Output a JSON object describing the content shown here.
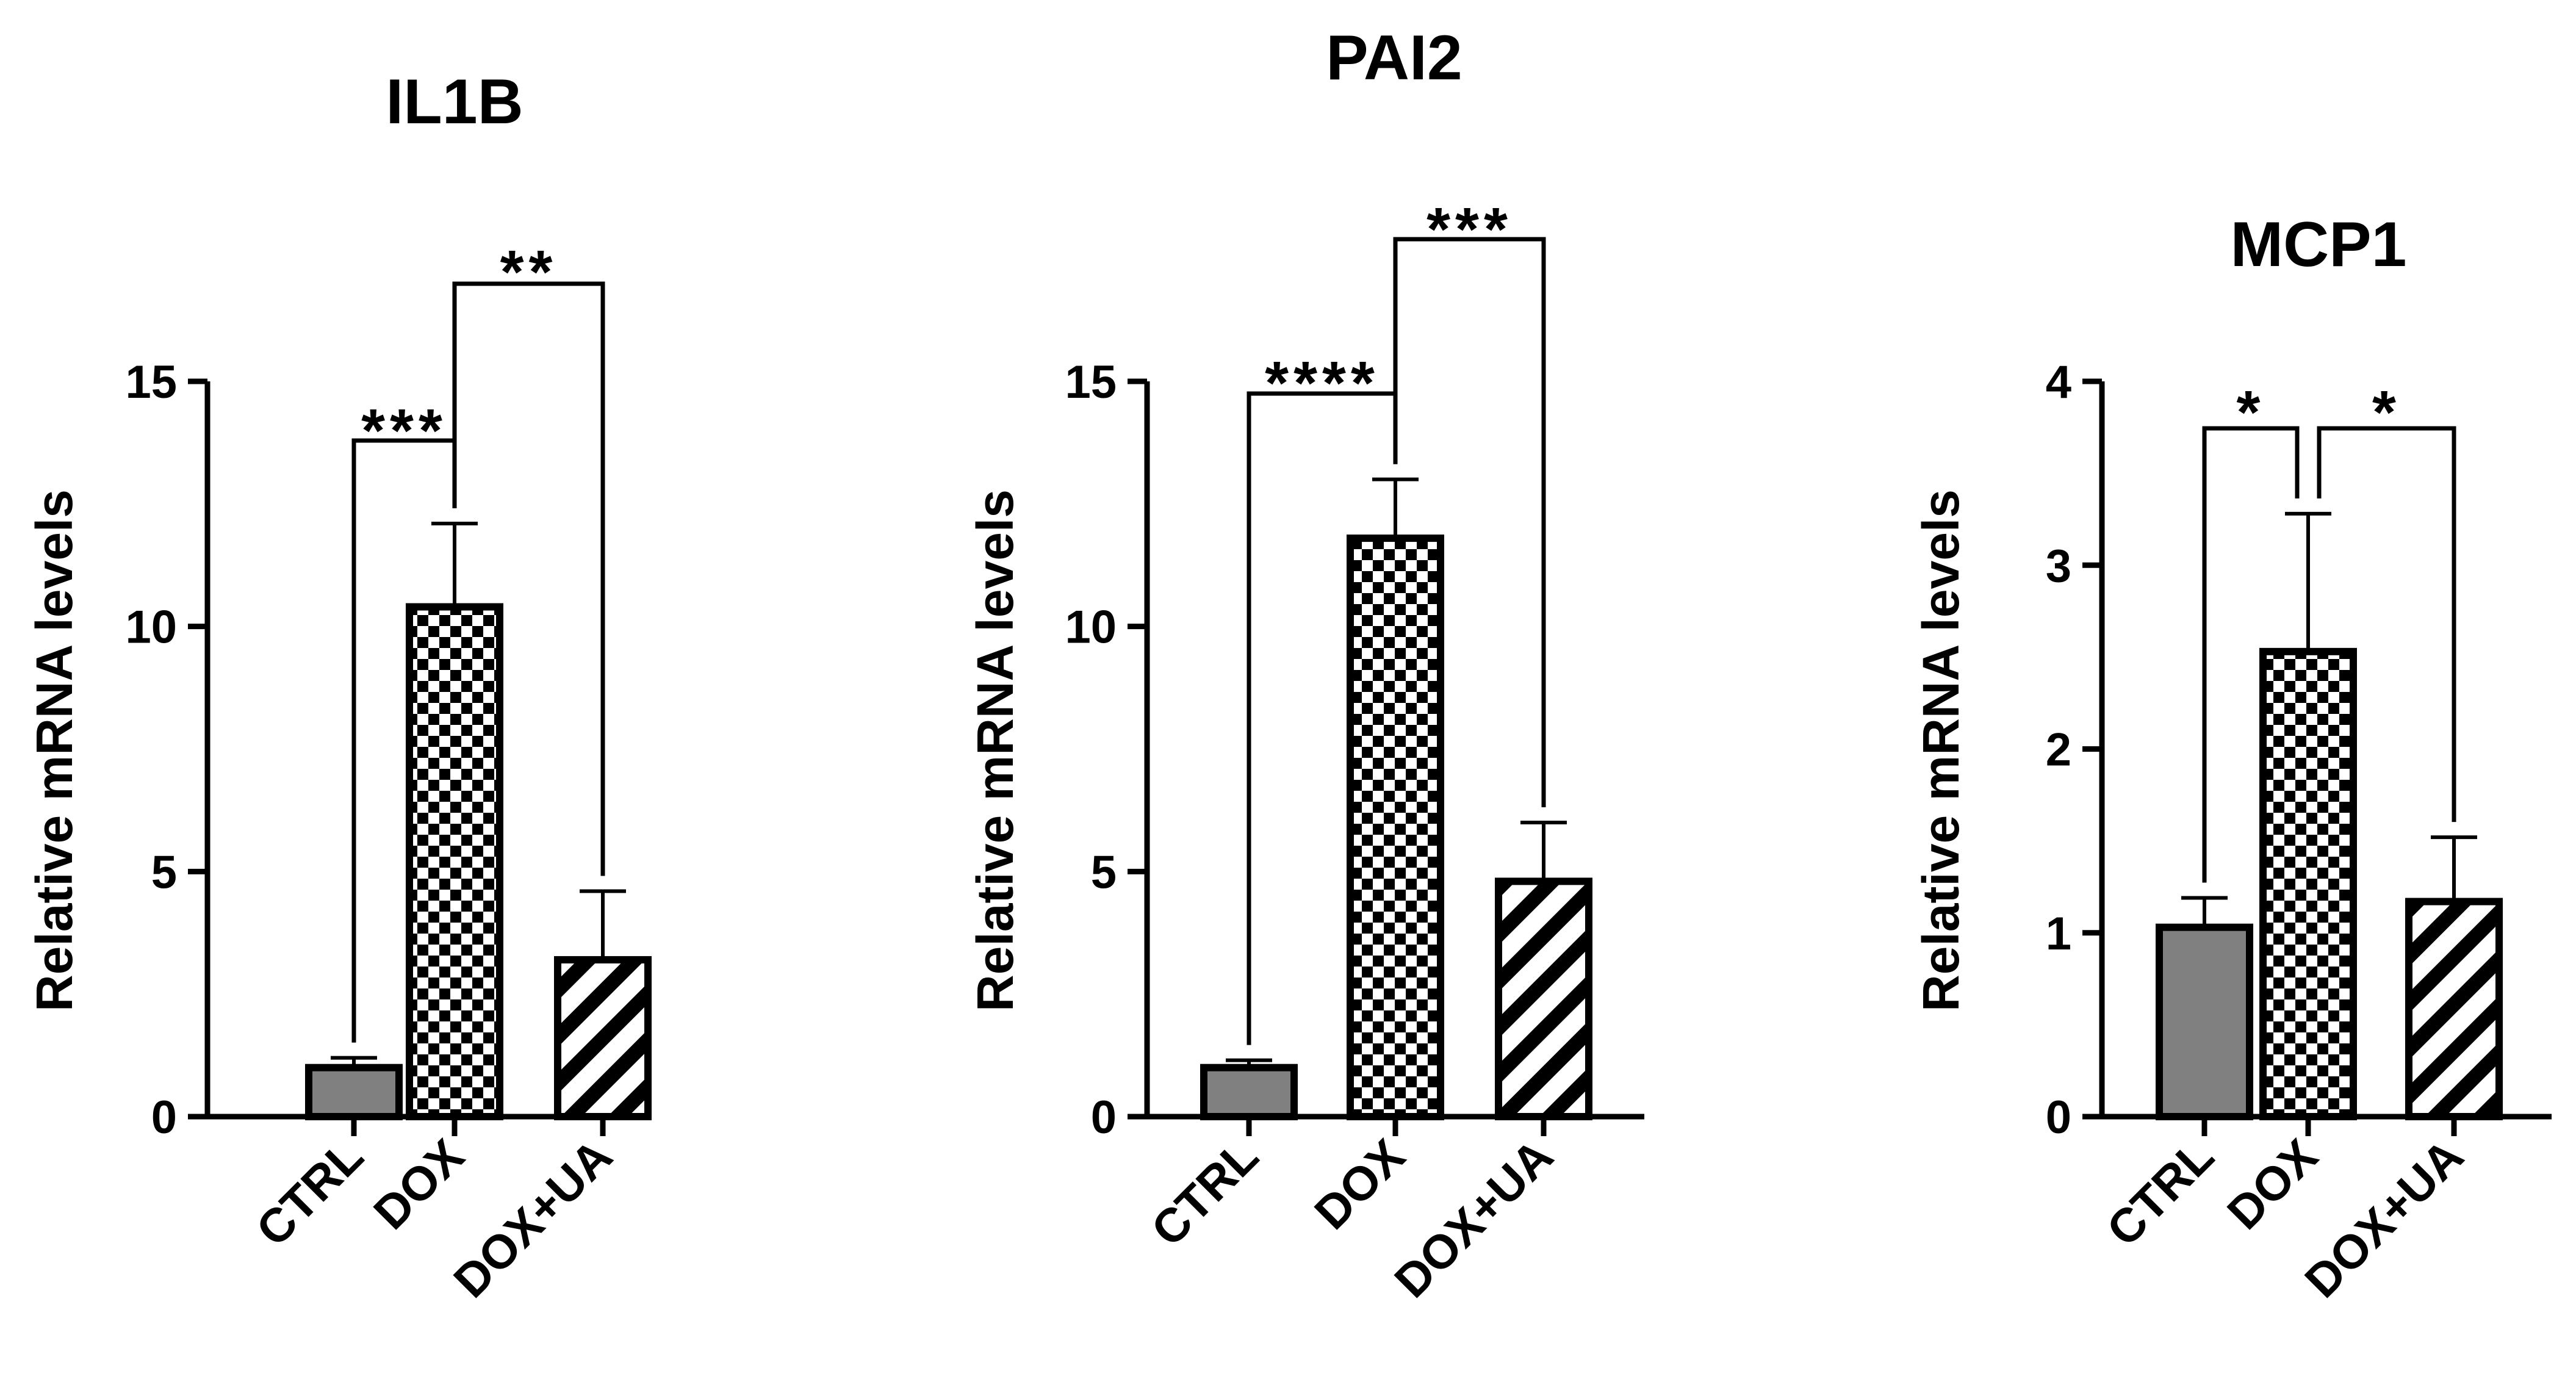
{
  "chart_data": [
    {
      "type": "bar",
      "title": "IL1B",
      "xlabel": "",
      "ylabel": "Relative mRNA levels",
      "ylim": [
        0,
        15
      ],
      "yticks": [
        "0",
        "5",
        "10",
        "15"
      ],
      "categories": [
        "CTRL",
        "DOX",
        "DOX+UA"
      ],
      "values": [
        1.0,
        10.4,
        3.2
      ],
      "error": [
        0.2,
        1.7,
        1.4
      ],
      "fills": [
        "solid-gray",
        "checkerboard",
        "diagonal-stripes"
      ],
      "comparisons": [
        {
          "from": "CTRL",
          "to": "DOX",
          "label": "***"
        },
        {
          "from": "DOX",
          "to": "DOX+UA",
          "label": "**"
        }
      ]
    },
    {
      "type": "bar",
      "title": "PAI2",
      "xlabel": "",
      "ylabel": "Relative mRNA levels",
      "ylim": [
        0,
        15
      ],
      "yticks": [
        "0",
        "5",
        "10",
        "15"
      ],
      "categories": [
        "CTRL",
        "DOX",
        "DOX+UA"
      ],
      "values": [
        1.0,
        11.8,
        4.8
      ],
      "error": [
        0.15,
        1.2,
        1.2
      ],
      "fills": [
        "solid-gray",
        "checkerboard",
        "diagonal-stripes"
      ],
      "comparisons": [
        {
          "from": "CTRL",
          "to": "DOX",
          "label": "****"
        },
        {
          "from": "DOX",
          "to": "DOX+UA",
          "label": "***"
        }
      ]
    },
    {
      "type": "bar",
      "title": "MCP1",
      "xlabel": "",
      "ylabel": "Relative mRNA levels",
      "ylim": [
        0,
        4
      ],
      "yticks": [
        "0",
        "1",
        "2",
        "3",
        "4"
      ],
      "categories": [
        "CTRL",
        "DOX",
        "DOX+UA"
      ],
      "values": [
        1.03,
        2.53,
        1.17
      ],
      "error": [
        0.16,
        0.75,
        0.35
      ],
      "fills": [
        "solid-gray",
        "checkerboard",
        "diagonal-stripes"
      ],
      "comparisons": [
        {
          "from": "CTRL",
          "to": "DOX",
          "label": "*"
        },
        {
          "from": "DOX",
          "to": "DOX+UA",
          "label": "*"
        }
      ]
    }
  ],
  "colors": {
    "bar_gray": "#808080",
    "ink": "#000000",
    "background": "#ffffff"
  }
}
